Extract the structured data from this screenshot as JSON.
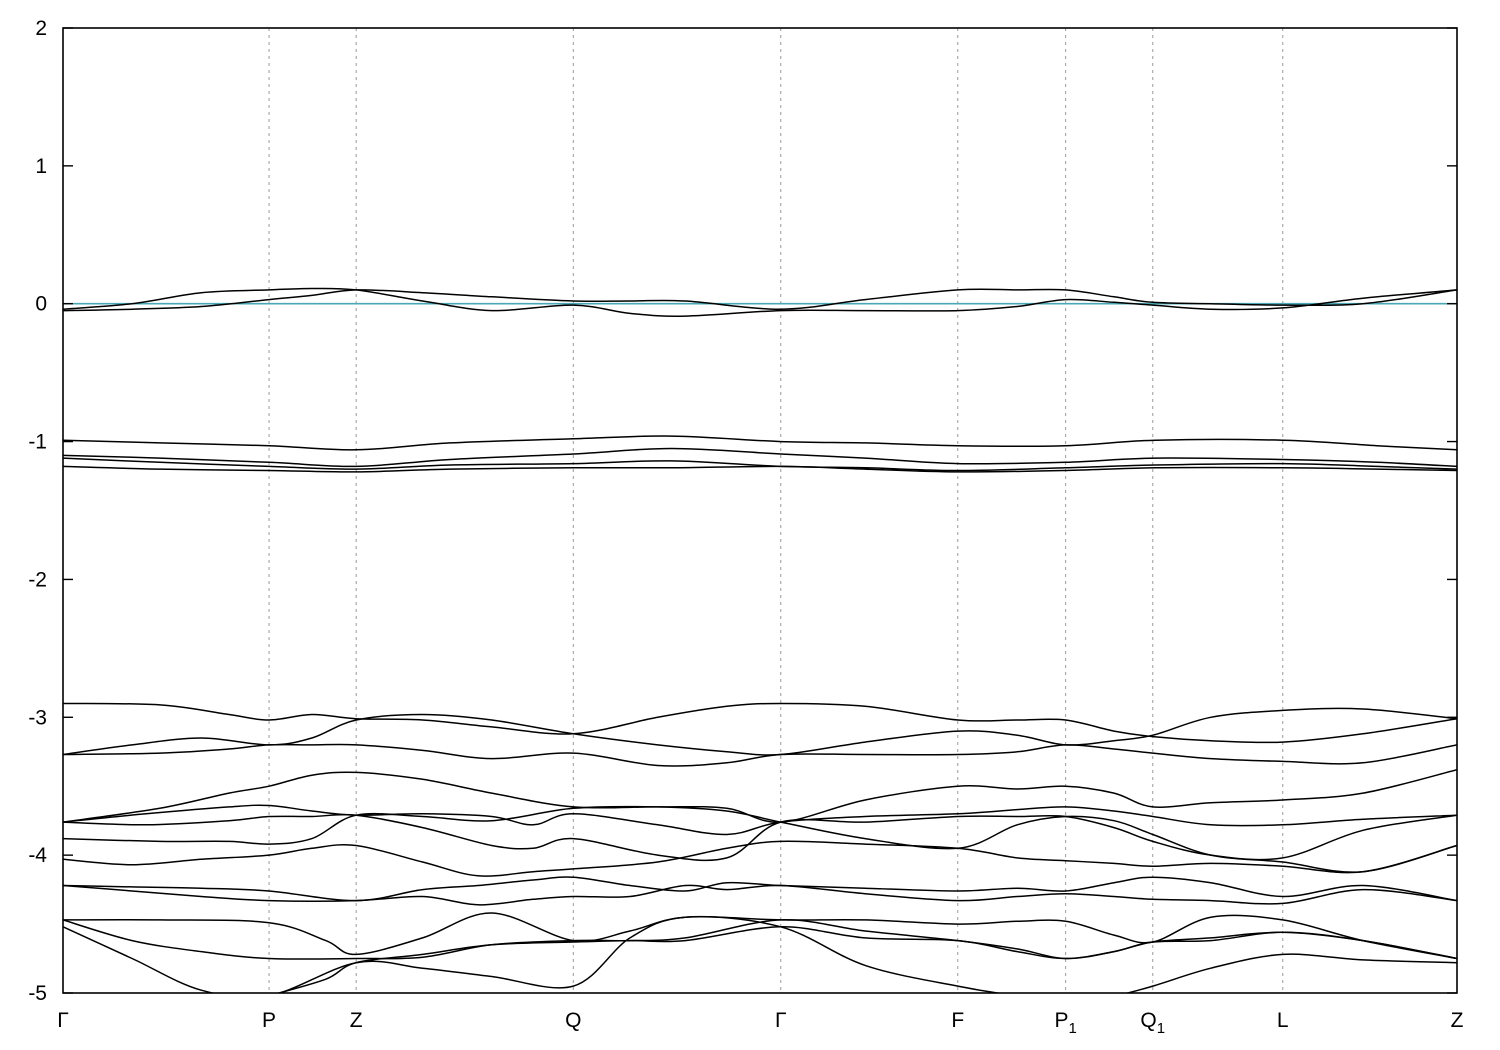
{
  "chart_data": {
    "type": "line",
    "title": "",
    "xlabel": "",
    "ylabel": "",
    "ylim": [
      -5,
      2
    ],
    "yticks": [
      2,
      1,
      0,
      -1,
      -2,
      -3,
      -4,
      -5
    ],
    "xlim": [
      0,
      10.08
    ],
    "kpoints": [
      {
        "label": "Γ",
        "sub": "",
        "x": 0.0
      },
      {
        "label": "P",
        "sub": "",
        "x": 1.49
      },
      {
        "label": "Z",
        "sub": "",
        "x": 2.12
      },
      {
        "label": "Q",
        "sub": "",
        "x": 3.69
      },
      {
        "label": "Γ",
        "sub": "",
        "x": 5.19
      },
      {
        "label": "F",
        "sub": "",
        "x": 6.47
      },
      {
        "label": "P",
        "sub": "1",
        "x": 7.25
      },
      {
        "label": "Q",
        "sub": "1",
        "x": 7.88
      },
      {
        "label": "L",
        "sub": "",
        "x": 8.82
      },
      {
        "label": "Z",
        "sub": "",
        "x": 10.08
      }
    ],
    "grid": "vertical dashed at k-points",
    "fermi_level": 0,
    "fermi_color": "#4aa8b4",
    "line_color": "#000000",
    "series": [
      {
        "x": [
          0,
          0.5,
          1.0,
          1.49,
          1.8,
          2.12,
          2.6,
          3.1,
          3.69,
          4.1,
          4.5,
          5.19,
          5.8,
          6.47,
          6.9,
          7.25,
          7.6,
          7.88,
          8.3,
          8.82,
          9.4,
          10.08
        ],
        "y": [
          -0.05,
          -0.04,
          -0.02,
          0.03,
          0.06,
          0.1,
          0.08,
          0.05,
          0.02,
          0.02,
          0.02,
          -0.04,
          0.03,
          0.1,
          0.1,
          0.1,
          0.05,
          0.01,
          0.0,
          -0.01,
          0.0,
          0.1
        ]
      },
      {
        "x": [
          0,
          0.5,
          1.0,
          1.49,
          1.8,
          2.12,
          2.6,
          3.1,
          3.69,
          4.1,
          4.5,
          5.19,
          5.8,
          6.47,
          6.9,
          7.25,
          7.6,
          7.88,
          8.3,
          8.82,
          9.4,
          10.08
        ],
        "y": [
          -0.04,
          0.0,
          0.08,
          0.1,
          0.11,
          0.1,
          0.02,
          -0.05,
          -0.01,
          -0.07,
          -0.09,
          -0.05,
          -0.05,
          -0.05,
          -0.02,
          0.03,
          0.01,
          -0.01,
          -0.04,
          -0.03,
          0.04,
          0.1
        ]
      },
      {
        "x": [
          0,
          0.7,
          1.49,
          2.12,
          2.8,
          3.69,
          4.4,
          5.19,
          5.8,
          6.47,
          7.25,
          7.9,
          8.82,
          9.5,
          10.08
        ],
        "y": [
          -0.99,
          -1.01,
          -1.03,
          -1.06,
          -1.01,
          -0.98,
          -0.96,
          -1.0,
          -1.01,
          -1.03,
          -1.03,
          -0.99,
          -0.99,
          -1.03,
          -1.06
        ]
      },
      {
        "x": [
          0,
          0.7,
          1.49,
          2.12,
          2.8,
          3.69,
          4.4,
          5.19,
          5.8,
          6.47,
          7.25,
          7.9,
          8.82,
          9.5,
          10.08
        ],
        "y": [
          -1.1,
          -1.12,
          -1.15,
          -1.18,
          -1.13,
          -1.09,
          -1.05,
          -1.09,
          -1.12,
          -1.16,
          -1.15,
          -1.12,
          -1.13,
          -1.15,
          -1.18
        ]
      },
      {
        "x": [
          0,
          0.7,
          1.49,
          2.12,
          2.8,
          3.69,
          4.4,
          5.19,
          5.8,
          6.47,
          7.25,
          7.9,
          8.82,
          9.5,
          10.08
        ],
        "y": [
          -1.12,
          -1.15,
          -1.18,
          -1.2,
          -1.17,
          -1.16,
          -1.14,
          -1.18,
          -1.19,
          -1.21,
          -1.19,
          -1.17,
          -1.16,
          -1.18,
          -1.2
        ]
      },
      {
        "x": [
          0,
          0.7,
          1.49,
          2.12,
          2.8,
          3.69,
          4.4,
          5.19,
          5.8,
          6.47,
          7.25,
          7.9,
          8.82,
          9.5,
          10.08
        ],
        "y": [
          -1.18,
          -1.2,
          -1.21,
          -1.22,
          -1.2,
          -1.19,
          -1.19,
          -1.18,
          -1.2,
          -1.22,
          -1.21,
          -1.19,
          -1.19,
          -1.2,
          -1.21
        ]
      },
      {
        "x": [
          0,
          0.7,
          1.2,
          1.49,
          1.8,
          2.12,
          2.6,
          3.1,
          3.69,
          4.3,
          4.8,
          5.19,
          5.8,
          6.47,
          6.9,
          7.25,
          7.6,
          7.88,
          8.3,
          8.82,
          9.4,
          10.08
        ],
        "y": [
          -2.9,
          -2.91,
          -2.98,
          -3.02,
          -2.98,
          -3.01,
          -3.02,
          -3.07,
          -3.12,
          -3.0,
          -2.92,
          -2.9,
          -2.92,
          -3.02,
          -3.02,
          -3.02,
          -3.1,
          -3.14,
          -3.17,
          -3.18,
          -3.12,
          -3.01
        ]
      },
      {
        "x": [
          0,
          0.5,
          1.0,
          1.49,
          1.8,
          2.12,
          2.6,
          3.1,
          3.69,
          4.3,
          4.8,
          5.19,
          5.8,
          6.47,
          6.9,
          7.25,
          7.6,
          7.88,
          8.3,
          8.82,
          9.4,
          10.08
        ],
        "y": [
          -3.27,
          -3.2,
          -3.15,
          -3.2,
          -3.15,
          -3.02,
          -2.98,
          -3.02,
          -3.12,
          -3.2,
          -3.25,
          -3.27,
          -3.18,
          -3.1,
          -3.13,
          -3.2,
          -3.17,
          -3.13,
          -3.0,
          -2.95,
          -2.94,
          -3.01
        ]
      },
      {
        "x": [
          0,
          0.7,
          1.2,
          1.49,
          1.8,
          2.12,
          2.6,
          3.1,
          3.69,
          4.3,
          4.8,
          5.19,
          5.8,
          6.47,
          6.9,
          7.25,
          7.6,
          7.88,
          8.3,
          8.82,
          9.4,
          10.08
        ],
        "y": [
          -3.27,
          -3.26,
          -3.23,
          -3.2,
          -3.2,
          -3.2,
          -3.24,
          -3.3,
          -3.26,
          -3.35,
          -3.33,
          -3.27,
          -3.27,
          -3.27,
          -3.25,
          -3.2,
          -3.23,
          -3.26,
          -3.3,
          -3.32,
          -3.33,
          -3.2
        ]
      },
      {
        "x": [
          0,
          0.7,
          1.2,
          1.49,
          1.8,
          2.12,
          2.6,
          3.1,
          3.69,
          4.3,
          4.8,
          5.19,
          5.8,
          6.47,
          6.9,
          7.25,
          7.6,
          7.88,
          8.3,
          8.82,
          9.4,
          10.08
        ],
        "y": [
          -3.76,
          -3.66,
          -3.55,
          -3.5,
          -3.42,
          -3.4,
          -3.45,
          -3.55,
          -3.65,
          -3.65,
          -3.66,
          -3.76,
          -3.6,
          -3.5,
          -3.52,
          -3.5,
          -3.55,
          -3.65,
          -3.62,
          -3.6,
          -3.55,
          -3.38
        ]
      },
      {
        "x": [
          0,
          0.6,
          1.2,
          1.49,
          1.8,
          2.12,
          2.6,
          3.1,
          3.4,
          3.69,
          4.3,
          4.8,
          5.19,
          5.8,
          6.47,
          6.9,
          7.25,
          7.6,
          7.88,
          8.3,
          8.82,
          9.4,
          10.08
        ],
        "y": [
          -3.76,
          -3.7,
          -3.65,
          -3.64,
          -3.68,
          -3.71,
          -3.7,
          -3.72,
          -3.78,
          -3.7,
          -3.78,
          -3.85,
          -3.76,
          -3.72,
          -3.7,
          -3.67,
          -3.65,
          -3.68,
          -3.72,
          -3.78,
          -3.78,
          -3.74,
          -3.71
        ]
      },
      {
        "x": [
          0,
          0.6,
          1.2,
          1.49,
          1.8,
          2.12,
          2.6,
          3.1,
          3.4,
          3.69,
          4.3,
          4.8,
          5.19,
          5.8,
          6.47,
          6.9,
          7.25,
          7.6,
          7.88,
          8.3,
          8.82,
          9.4,
          10.08
        ],
        "y": [
          -3.76,
          -3.78,
          -3.75,
          -3.72,
          -3.72,
          -3.71,
          -3.8,
          -3.93,
          -3.95,
          -3.88,
          -4.0,
          -4.02,
          -3.76,
          -3.76,
          -3.72,
          -3.72,
          -3.72,
          -3.8,
          -3.9,
          -4.0,
          -4.02,
          -3.82,
          -3.71
        ]
      },
      {
        "x": [
          0,
          0.7,
          1.2,
          1.49,
          1.8,
          2.12,
          2.6,
          3.1,
          3.69,
          4.3,
          4.8,
          5.19,
          5.8,
          6.47,
          6.9,
          7.25,
          7.6,
          7.88,
          8.3,
          8.82,
          9.4,
          10.08
        ],
        "y": [
          -3.88,
          -3.9,
          -3.9,
          -3.92,
          -3.88,
          -3.71,
          -3.72,
          -3.75,
          -3.66,
          -3.65,
          -3.68,
          -3.76,
          -3.88,
          -3.95,
          -3.78,
          -3.72,
          -3.75,
          -3.85,
          -4.0,
          -4.05,
          -4.12,
          -3.93
        ]
      },
      {
        "x": [
          0,
          0.5,
          1.0,
          1.49,
          1.8,
          2.12,
          2.6,
          3.0,
          3.4,
          3.69,
          4.3,
          4.8,
          5.19,
          5.8,
          6.47,
          6.9,
          7.25,
          7.6,
          7.88,
          8.3,
          8.82,
          9.4,
          10.08
        ],
        "y": [
          -4.03,
          -4.07,
          -4.03,
          -4.0,
          -3.95,
          -3.93,
          -4.05,
          -4.15,
          -4.12,
          -4.1,
          -4.05,
          -3.95,
          -3.9,
          -3.92,
          -3.95,
          -4.02,
          -4.04,
          -4.06,
          -4.08,
          -4.06,
          -4.08,
          -4.12,
          -3.93
        ]
      },
      {
        "x": [
          0,
          0.5,
          1.0,
          1.49,
          2.12,
          2.6,
          3.0,
          3.4,
          3.69,
          4.1,
          4.5,
          4.8,
          5.19,
          5.8,
          6.47,
          6.9,
          7.25,
          7.6,
          7.88,
          8.3,
          8.82,
          9.4,
          10.08
        ],
        "y": [
          -4.22,
          -4.23,
          -4.24,
          -4.26,
          -4.33,
          -4.25,
          -4.22,
          -4.18,
          -4.16,
          -4.22,
          -4.26,
          -4.2,
          -4.22,
          -4.24,
          -4.26,
          -4.24,
          -4.26,
          -4.2,
          -4.16,
          -4.2,
          -4.3,
          -4.22,
          -4.33
        ]
      },
      {
        "x": [
          0,
          0.5,
          1.0,
          1.49,
          2.12,
          2.6,
          3.0,
          3.4,
          3.69,
          4.1,
          4.5,
          4.8,
          5.19,
          5.8,
          6.47,
          6.9,
          7.25,
          7.6,
          7.88,
          8.3,
          8.82,
          9.4,
          10.08
        ],
        "y": [
          -4.22,
          -4.26,
          -4.3,
          -4.33,
          -4.33,
          -4.3,
          -4.36,
          -4.32,
          -4.3,
          -4.3,
          -4.22,
          -4.25,
          -4.22,
          -4.28,
          -4.33,
          -4.3,
          -4.28,
          -4.3,
          -4.32,
          -4.33,
          -4.35,
          -4.25,
          -4.33
        ]
      },
      {
        "x": [
          0,
          0.7,
          1.49,
          1.9,
          2.12,
          2.6,
          3.1,
          3.69,
          4.1,
          4.5,
          5.19,
          5.8,
          6.47,
          6.9,
          7.25,
          7.6,
          7.88,
          8.3,
          8.82,
          9.4,
          10.08
        ],
        "y": [
          -4.47,
          -4.47,
          -4.49,
          -4.62,
          -4.72,
          -4.6,
          -4.42,
          -4.62,
          -4.55,
          -4.45,
          -4.47,
          -4.47,
          -4.5,
          -4.48,
          -4.48,
          -4.58,
          -4.63,
          -4.45,
          -4.47,
          -4.62,
          -4.75
        ]
      },
      {
        "x": [
          0,
          0.5,
          1.0,
          1.49,
          2.12,
          2.6,
          3.1,
          3.69,
          4.1,
          4.5,
          5.19,
          5.8,
          6.47,
          6.9,
          7.25,
          7.6,
          7.88,
          8.3,
          8.82,
          9.4,
          10.08
        ],
        "y": [
          -4.47,
          -4.62,
          -4.7,
          -4.75,
          -4.75,
          -4.74,
          -4.65,
          -4.62,
          -4.62,
          -4.6,
          -4.47,
          -4.55,
          -4.62,
          -4.68,
          -4.75,
          -4.7,
          -4.63,
          -4.6,
          -4.56,
          -4.62,
          -4.75
        ]
      },
      {
        "x": [
          0,
          0.5,
          1.0,
          1.49,
          2.12,
          2.6,
          3.1,
          3.69,
          4.1,
          4.5,
          5.19,
          5.8,
          6.47,
          6.9,
          7.25,
          7.6,
          7.88,
          8.3,
          8.82,
          9.4,
          10.08
        ],
        "y": [
          -4.52,
          -4.75,
          -4.98,
          -5.02,
          -4.78,
          -4.82,
          -4.88,
          -4.95,
          -4.6,
          -4.45,
          -4.52,
          -4.8,
          -4.95,
          -5.02,
          -5.05,
          -5.02,
          -4.95,
          -4.82,
          -4.72,
          -4.76,
          -4.78
        ]
      },
      {
        "x": [
          1.49,
          1.9,
          2.12,
          2.6,
          3.1,
          3.69,
          4.1,
          4.5,
          5.19,
          5.8,
          6.47,
          6.9,
          7.25,
          7.6,
          7.88,
          8.3,
          8.82,
          9.4,
          10.08
        ],
        "y": [
          -5.02,
          -4.9,
          -4.78,
          -4.72,
          -4.65,
          -4.63,
          -4.62,
          -4.62,
          -4.52,
          -4.6,
          -4.62,
          -4.7,
          -4.75,
          -4.7,
          -4.63,
          -4.62,
          -4.56,
          -4.62,
          -4.75
        ]
      }
    ]
  }
}
